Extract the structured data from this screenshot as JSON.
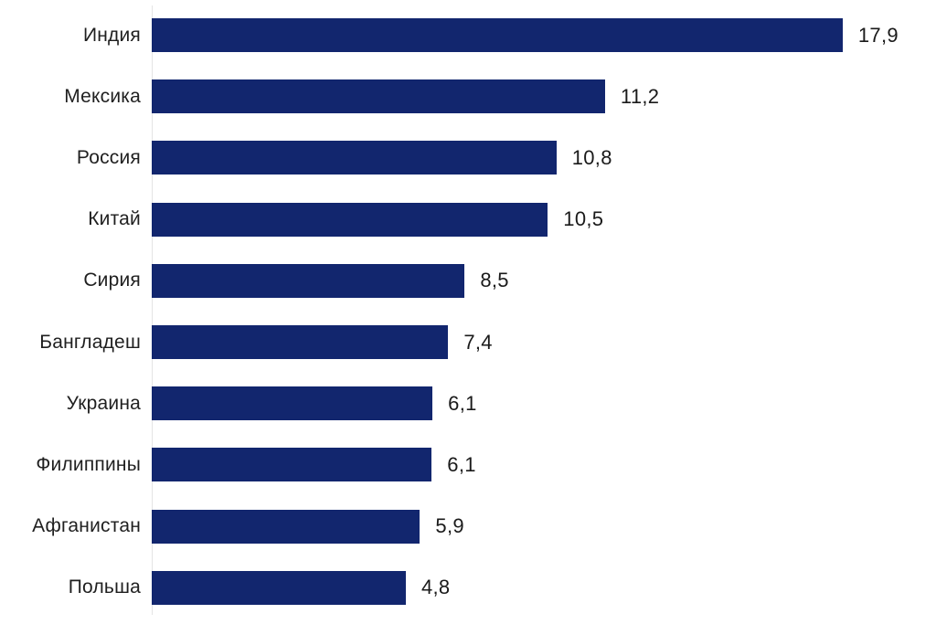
{
  "chart_data": {
    "type": "bar",
    "orientation": "horizontal",
    "title": "",
    "xlabel": "",
    "ylabel": "",
    "legend": null,
    "grid": false,
    "axis_line": "left-vertical",
    "bar_color": "#12266e",
    "axis_line_color": "#e4e4e4",
    "label_color": "#1f1f1f",
    "value_color": "#1a1a1a",
    "background_color": "#ffffff",
    "xlim": [
      0,
      20
    ],
    "decimal_separator": ",",
    "categories": [
      "Индия",
      "Мексика",
      "Россия",
      "Китай",
      "Сирия",
      "Бангладеш",
      "Украина",
      "Филиппины",
      "Афганистан",
      "Польша"
    ],
    "values": [
      17.9,
      11.2,
      10.8,
      10.5,
      8.5,
      7.4,
      6.1,
      6.1,
      5.9,
      4.8
    ],
    "value_labels": [
      "17,9",
      "11,2",
      "10,8",
      "10,5",
      "8,5",
      "7,4",
      "6,1",
      "6,1",
      "5,9",
      "4,8"
    ],
    "bar_width_pct": [
      88.1,
      57.8,
      51.6,
      50.5,
      39.9,
      37.8,
      35.8,
      35.7,
      34.2,
      32.4
    ]
  }
}
